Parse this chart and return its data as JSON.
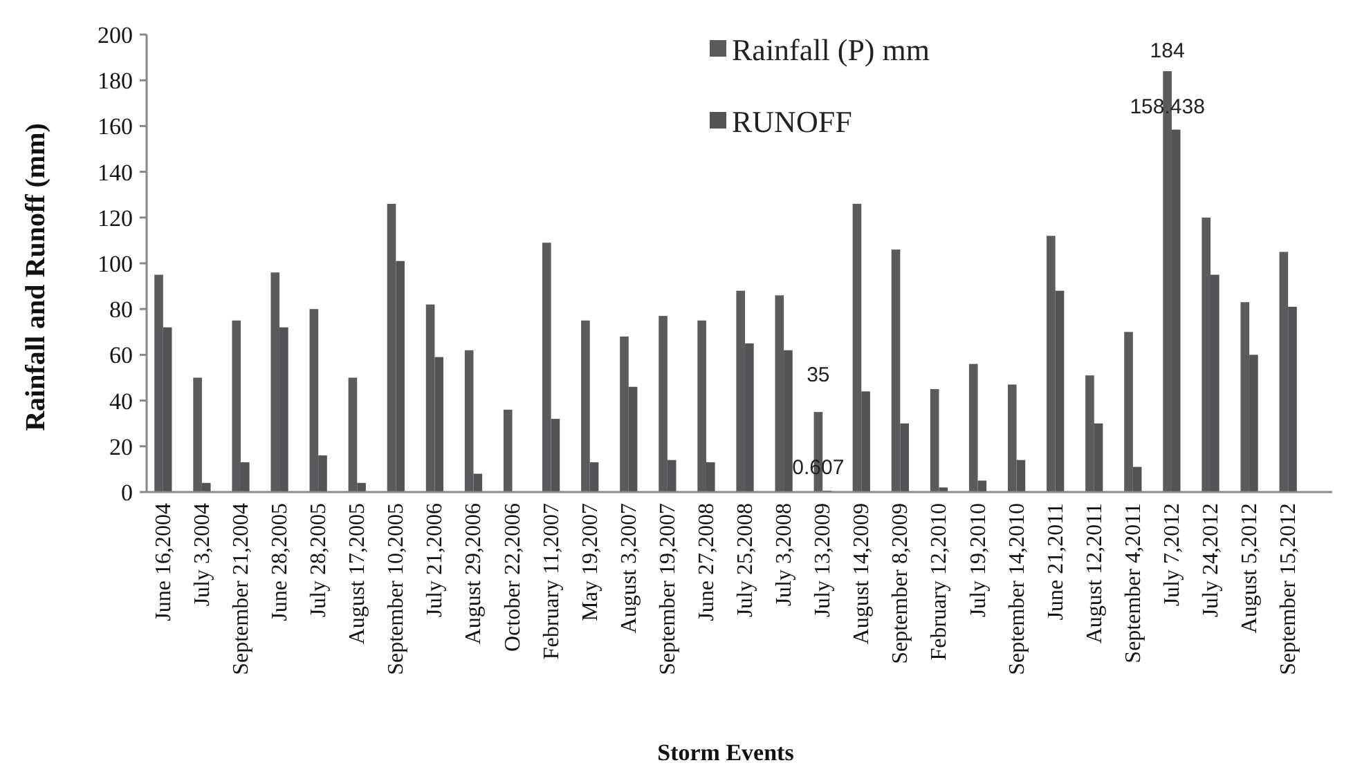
{
  "chart_data": {
    "type": "bar",
    "xlabel": "Storm Events",
    "ylabel": "Rainfall and Runoff (mm)",
    "categories": [
      "June 16,2004",
      "July 3,2004",
      "September 21,2004",
      "June 28,2005",
      "July 28,2005",
      "August 17,2005",
      "September 10,2005",
      "July 21,2006",
      "August 29,2006",
      "October 22,2006",
      "February 11,2007",
      "May 19,2007",
      "August 3,2007",
      "September 19,2007",
      "June 27,2008",
      "July 25,2008",
      "July 3,2008",
      "July 13,2009",
      "August 14,2009",
      "September 8,2009",
      "February 12,2010",
      "July 19,2010",
      "September 14,2010",
      "June 21,2011",
      "August 12,2011",
      "September 4,2011",
      "July 7,2012",
      "July 24,2012",
      "August 5,2012",
      "September 15,2012"
    ],
    "series": [
      {
        "name": "Rainfall (P) mm",
        "color": "#5b5b5d",
        "values": [
          95,
          50,
          75,
          96,
          80,
          50,
          126,
          82,
          62,
          36,
          109,
          75,
          68,
          77,
          75,
          88,
          86,
          35,
          126,
          106,
          45,
          56,
          47,
          112,
          51,
          70,
          184,
          120,
          83,
          105
        ],
        "value_labels": [
          null,
          null,
          null,
          null,
          null,
          null,
          null,
          null,
          null,
          null,
          null,
          null,
          null,
          null,
          null,
          null,
          null,
          "35",
          null,
          null,
          null,
          null,
          null,
          null,
          null,
          null,
          "184",
          null,
          null,
          null
        ]
      },
      {
        "name": "RUNOFF",
        "color": "#535355",
        "values": [
          72,
          4,
          13,
          72,
          16,
          4,
          101,
          59,
          8,
          null,
          32,
          13,
          46,
          14,
          13,
          65,
          62,
          0.607,
          44,
          30,
          2,
          5,
          14,
          88,
          30,
          11,
          158.438,
          95,
          60,
          81
        ],
        "value_labels": [
          null,
          null,
          null,
          null,
          null,
          null,
          null,
          null,
          null,
          null,
          null,
          null,
          null,
          null,
          null,
          null,
          null,
          "0.607",
          null,
          null,
          null,
          null,
          null,
          null,
          null,
          null,
          "158.438",
          null,
          null,
          null
        ]
      }
    ],
    "ylim": [
      0,
      200
    ],
    "yticks": [
      0,
      20,
      40,
      60,
      80,
      100,
      120,
      140,
      160,
      180,
      200
    ],
    "grid": false,
    "legend": "top"
  }
}
